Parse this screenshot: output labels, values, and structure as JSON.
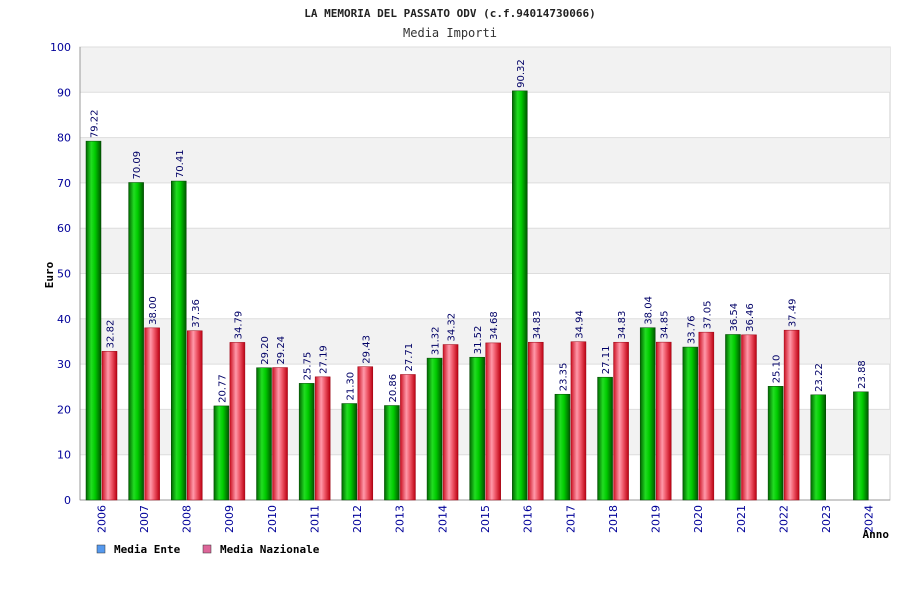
{
  "chart_data": {
    "type": "bar",
    "title": "LA MEMORIA DEL PASSATO ODV (c.f.94014730066)",
    "subtitle": "Media Importi",
    "xlabel": "Anno",
    "ylabel": "Euro",
    "ylim": [
      0,
      100
    ],
    "yticks": [
      0,
      10,
      20,
      30,
      40,
      50,
      60,
      70,
      80,
      90,
      100
    ],
    "grid": true,
    "legend_position": "bottom-left",
    "categories": [
      "2006",
      "2007",
      "2008",
      "2009",
      "2010",
      "2011",
      "2012",
      "2013",
      "2014",
      "2015",
      "2016",
      "2017",
      "2018",
      "2019",
      "2020",
      "2021",
      "2022",
      "2023",
      "2024"
    ],
    "series": [
      {
        "name": "Media Ente",
        "color": "#00bb00",
        "legend_color": "#5599ee",
        "values": [
          79.22,
          70.09,
          70.41,
          20.77,
          29.2,
          25.75,
          21.3,
          20.86,
          31.32,
          31.52,
          90.32,
          23.35,
          27.11,
          38.04,
          33.76,
          36.54,
          25.1,
          23.22,
          23.88
        ],
        "labels": [
          "79.22",
          "70.09",
          "70.41",
          "20.77",
          "29.20",
          "25.75",
          "21.30",
          "20.86",
          "31.32",
          "31.52",
          "90.32",
          "23.35",
          "27.11",
          "38.04",
          "33.76",
          "36.54",
          "25.10",
          "23.22",
          "23.88"
        ]
      },
      {
        "name": "Media Nazionale",
        "color": "#dd2233",
        "legend_color": "#dd6699",
        "values": [
          32.82,
          38.0,
          37.36,
          34.79,
          29.24,
          27.19,
          29.43,
          27.71,
          34.32,
          34.68,
          34.83,
          34.94,
          34.83,
          34.85,
          37.05,
          36.46,
          37.49,
          null,
          null
        ],
        "labels": [
          "32.82",
          "38.00",
          "37.36",
          "34.79",
          "29.24",
          "27.19",
          "29.43",
          "27.71",
          "34.32",
          "34.68",
          "34.83",
          "34.94",
          "34.83",
          "34.85",
          "37.05",
          "36.46",
          "37.49",
          "",
          ""
        ]
      }
    ]
  }
}
